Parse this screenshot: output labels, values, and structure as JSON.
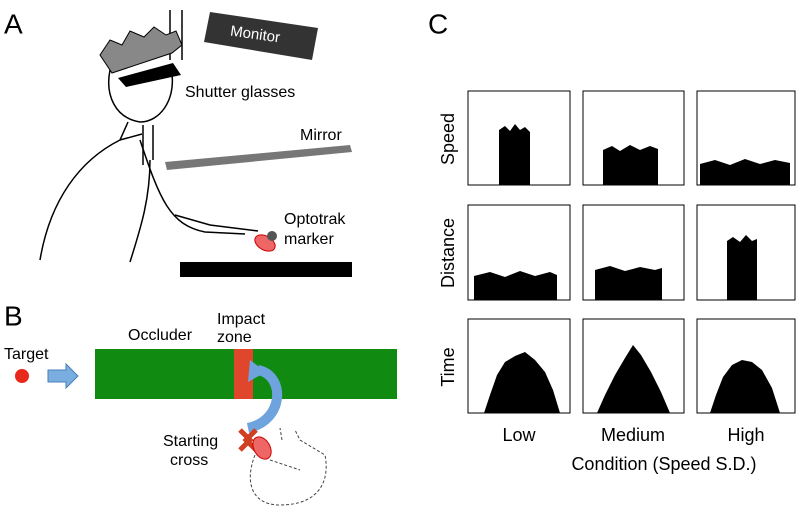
{
  "panels": {
    "a": {
      "letter": "A",
      "monitor": "Monitor",
      "glasses": "Shutter glasses",
      "mirror": "Mirror",
      "marker": [
        "Optotrak",
        "marker"
      ]
    },
    "b": {
      "letter": "B",
      "target": "Target",
      "occluder": "Occluder",
      "impact": [
        "Impact",
        "zone"
      ],
      "start": [
        "Starting",
        "cross"
      ]
    },
    "c": {
      "letter": "C",
      "rows": [
        "Speed",
        "Distance",
        "Time"
      ],
      "columns": [
        "Low",
        "Medium",
        "High"
      ],
      "xlabel": "Condition (Speed S.D.)"
    }
  }
}
